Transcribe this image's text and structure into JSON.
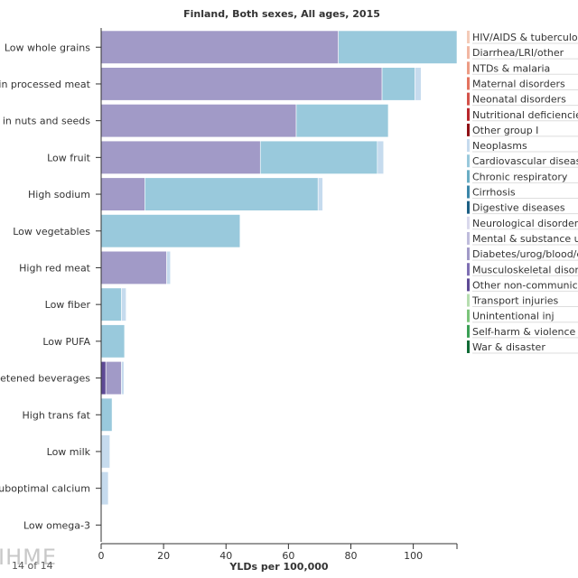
{
  "chart_data": {
    "type": "bar",
    "orientation": "horizontal",
    "stacked": true,
    "title": "Finland, Both sexes, All ages, 2015",
    "xlabel": "YLDs per 100,000",
    "ylabel": "",
    "xlim": [
      0,
      114
    ],
    "xticks": [
      0,
      20,
      40,
      60,
      80,
      100
    ],
    "categories": [
      "Low whole grains",
      "Diet high in processed meat",
      "Diet low in nuts and seeds",
      "Low fruit",
      "High sodium",
      "Low vegetables",
      "High red meat",
      "Low fiber",
      "Low PUFA",
      "Sugar-sweetened beverages",
      "High trans fat",
      "Low milk",
      "Suboptimal calcium",
      "Low omega-3"
    ],
    "series": [
      {
        "name": "Other non-communicable",
        "color": "#5e4a95",
        "values": [
          0,
          0,
          0,
          0,
          0,
          0,
          0,
          0,
          0,
          1.5,
          0,
          0,
          0,
          0
        ]
      },
      {
        "name": "Diabetes/urog/blood/endo",
        "color": "#a19ac7",
        "values": [
          76,
          90,
          62.5,
          51,
          14,
          0,
          21,
          0,
          0,
          5,
          0,
          0,
          0,
          0
        ]
      },
      {
        "name": "Cardiovascular diseases",
        "color": "#99c9dc",
        "values": [
          38,
          10.5,
          29.5,
          37.5,
          55.5,
          44.5,
          0,
          6.5,
          7.5,
          0,
          3.5,
          0,
          0,
          0
        ]
      },
      {
        "name": "Neoplasms",
        "color": "#c6dbee",
        "values": [
          0,
          2,
          0,
          2,
          1.5,
          0,
          1.2,
          1.5,
          0,
          0.8,
          0,
          2.8,
          2.3,
          0
        ]
      }
    ],
    "legend": {
      "placement": "right",
      "entries": [
        {
          "label": "HIV/AIDS & tuberculosis",
          "color": "#f4cbb8"
        },
        {
          "label": "Diarrhea/LRI/other",
          "color": "#f2b7a3"
        },
        {
          "label": "NTDs & malaria",
          "color": "#ec9c85"
        },
        {
          "label": "Maternal disorders",
          "color": "#e3735f"
        },
        {
          "label": "Neonatal disorders",
          "color": "#d3524a"
        },
        {
          "label": "Nutritional deficiencies",
          "color": "#b8262c"
        },
        {
          "label": "Other group I",
          "color": "#8e1015"
        },
        {
          "label": "Neoplasms",
          "color": "#c6dbee"
        },
        {
          "label": "Cardiovascular diseases",
          "color": "#99c9dc"
        },
        {
          "label": "Chronic respiratory",
          "color": "#6aadc4"
        },
        {
          "label": "Cirrhosis",
          "color": "#3a86a8"
        },
        {
          "label": "Digestive diseases",
          "color": "#1c5f84"
        },
        {
          "label": "Neurological disorders",
          "color": "#dad9ec"
        },
        {
          "label": "Mental & substance use",
          "color": "#bfbcdc"
        },
        {
          "label": "Diabetes/urog/blood/endo",
          "color": "#a19ac7"
        },
        {
          "label": "Musculoskeletal disorders",
          "color": "#7e6fb3"
        },
        {
          "label": "Other non-communicable",
          "color": "#5e4a95"
        },
        {
          "label": "Transport injuries",
          "color": "#b6deb0"
        },
        {
          "label": "Unintentional inj",
          "color": "#7bc47a"
        },
        {
          "label": "Self-harm & violence",
          "color": "#3b9f55"
        },
        {
          "label": "War & disaster",
          "color": "#0f6a35"
        }
      ]
    }
  },
  "watermark": "IHME",
  "pager": "14 of 14"
}
